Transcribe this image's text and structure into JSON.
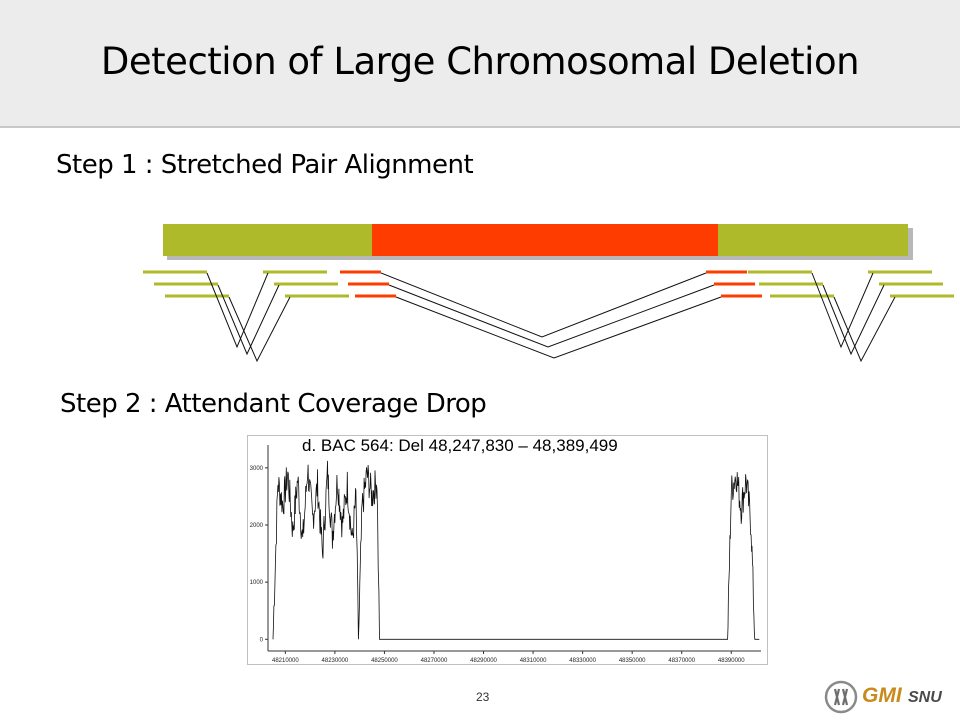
{
  "slide": {
    "title": "Detection of Large Chromosomal Deletion",
    "step1_label": "Step 1 : Stretched Pair Alignment",
    "step2_label": "Step 2 : Attendant Coverage Drop",
    "page_number": "23"
  },
  "colors": {
    "normal_segment": "#afba2a",
    "deleted_segment": "#ff3c00",
    "logo_gold": "#c98b1c"
  },
  "logo": {
    "icon": "chromosome-emblem-icon",
    "text": "GMI",
    "sub": "SNU"
  },
  "chart_data": {
    "type": "scatter",
    "title": "d. BAC 564: Del 48,247,830 – 48,389,499",
    "xlabel": "",
    "ylabel": "",
    "x_ticks": [
      "48210000",
      "48230000",
      "48250000",
      "48270000",
      "48290000",
      "48310000",
      "48330000",
      "48350000",
      "48370000",
      "48390000"
    ],
    "y_ticks": [
      "0",
      "1000",
      "2000",
      "3000"
    ],
    "xlim": [
      48203000,
      48402000
    ],
    "ylim": [
      -100,
      3400
    ],
    "deletion_start": 48247830,
    "deletion_end": 48389499,
    "coverage_profile": [
      {
        "x": 48205000,
        "y": 0
      },
      {
        "x": 48207000,
        "y": 2750
      },
      {
        "x": 48209000,
        "y": 2350
      },
      {
        "x": 48211000,
        "y": 2900
      },
      {
        "x": 48213000,
        "y": 1900
      },
      {
        "x": 48215000,
        "y": 2800
      },
      {
        "x": 48217000,
        "y": 1700
      },
      {
        "x": 48219000,
        "y": 3000
      },
      {
        "x": 48221000,
        "y": 2100
      },
      {
        "x": 48223000,
        "y": 2700
      },
      {
        "x": 48225000,
        "y": 1500
      },
      {
        "x": 48227000,
        "y": 2900
      },
      {
        "x": 48229000,
        "y": 1800
      },
      {
        "x": 48231000,
        "y": 2800
      },
      {
        "x": 48233000,
        "y": 2000
      },
      {
        "x": 48235000,
        "y": 2700
      },
      {
        "x": 48237000,
        "y": 1700
      },
      {
        "x": 48238500,
        "y": 2500
      },
      {
        "x": 48239500,
        "y": 0
      },
      {
        "x": 48241000,
        "y": 2300
      },
      {
        "x": 48243000,
        "y": 2900
      },
      {
        "x": 48245000,
        "y": 2500
      },
      {
        "x": 48247000,
        "y": 2800
      },
      {
        "x": 48248000,
        "y": 0
      },
      {
        "x": 48388500,
        "y": 0
      },
      {
        "x": 48390000,
        "y": 2600
      },
      {
        "x": 48392000,
        "y": 2900
      },
      {
        "x": 48394000,
        "y": 2300
      },
      {
        "x": 48396000,
        "y": 2800
      },
      {
        "x": 48398000,
        "y": 2000
      },
      {
        "x": 48399500,
        "y": 0
      },
      {
        "x": 48401500,
        "y": 0
      }
    ],
    "grid": false
  }
}
